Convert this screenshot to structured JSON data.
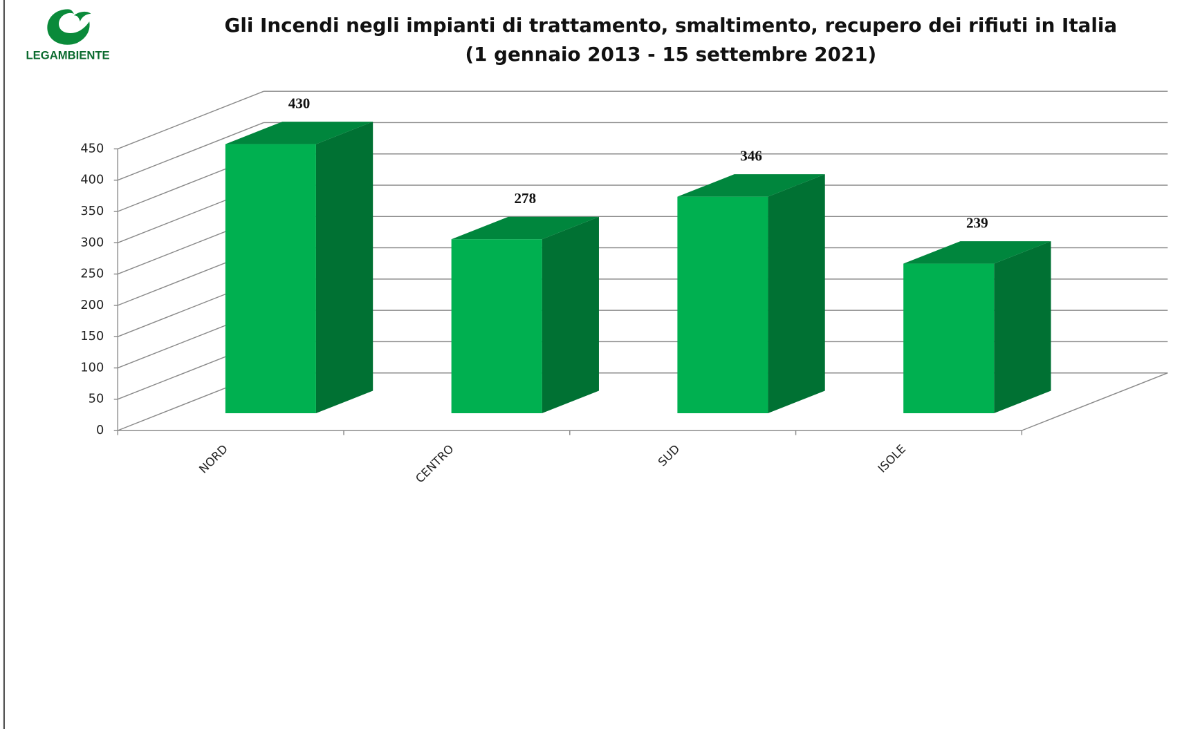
{
  "logo": "LEGAMBIENTE",
  "chart_data": {
    "type": "bar3d",
    "title": "Gli Incendi negli impianti di trattamento, smaltimento, recupero dei rifiuti in Italia",
    "subtitle": "(1 gennaio 2013 - 15 settembre 2021)",
    "categories": [
      "NORD",
      "CENTRO",
      "SUD",
      "ISOLE"
    ],
    "values": [
      430,
      278,
      346,
      239
    ],
    "color": "#00b050",
    "ylim": [
      0,
      450
    ],
    "yticks": [
      0,
      50,
      100,
      150,
      200,
      250,
      300,
      350,
      400,
      450
    ],
    "grid": true
  }
}
